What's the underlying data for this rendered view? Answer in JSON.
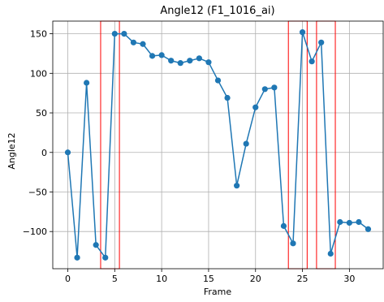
{
  "chart_data": {
    "type": "line",
    "title": "Angle12 (F1_1016_ai)",
    "xlabel": "Frame",
    "ylabel": "Angle12",
    "xlim": [
      -1.6,
      33.6
    ],
    "ylim": [
      -147,
      166
    ],
    "xticks": [
      0,
      5,
      10,
      15,
      20,
      25,
      30
    ],
    "yticks": [
      -100,
      -50,
      0,
      50,
      100,
      150
    ],
    "grid": true,
    "series": [
      {
        "color": "#1f77b4",
        "marker": "circle",
        "x": [
          0,
          1,
          2,
          3,
          4,
          5,
          6,
          7,
          8,
          9,
          10,
          11,
          12,
          13,
          14,
          15,
          16,
          17,
          18,
          19,
          20,
          21,
          22,
          23,
          24,
          25,
          26,
          27,
          28,
          29,
          30,
          31,
          32
        ],
        "y": [
          0,
          -133,
          88,
          -117,
          -133,
          150,
          150,
          139,
          137,
          122,
          123,
          116,
          113,
          116,
          119,
          114,
          91,
          69,
          -42,
          11,
          57,
          80,
          82,
          -93,
          -115,
          152,
          115,
          139,
          -128,
          -88,
          -89,
          -88,
          -97
        ]
      }
    ],
    "highlight_regions": [
      {
        "x_range": [
          3.5,
          5.5
        ],
        "color": "#ff0000"
      },
      {
        "x_range": [
          23.5,
          25.5
        ],
        "color": "#ff0000"
      },
      {
        "x_range": [
          26.5,
          28.5
        ],
        "color": "#ff0000"
      }
    ]
  }
}
